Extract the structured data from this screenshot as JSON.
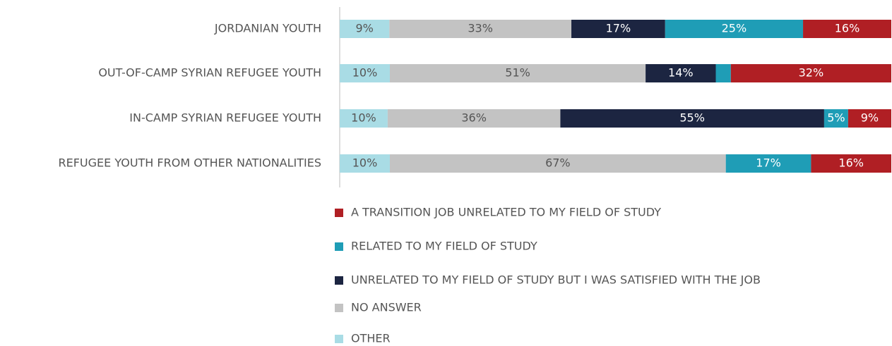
{
  "chart_data": {
    "type": "bar",
    "orientation": "horizontal",
    "stacked": true,
    "categories": [
      "JORDANIAN YOUTH",
      "OUT-OF-CAMP SYRIAN REFUGEE YOUTH",
      "IN-CAMP SYRIAN REFUGEE YOUTH",
      "REFUGEE YOUTH FROM OTHER NATIONALITIES"
    ],
    "series": [
      {
        "name": "OTHER",
        "color": "#a9dce5",
        "values": [
          9,
          10,
          10,
          10
        ],
        "value_labels": [
          "9%",
          "10%",
          "10%",
          "10%"
        ]
      },
      {
        "name": "NO ANSWER",
        "color": "#c3c3c3",
        "values": [
          33,
          51,
          36,
          67
        ],
        "value_labels": [
          "33%",
          "51%",
          "36%",
          "67%"
        ]
      },
      {
        "name": "UNRELATED TO MY FIELD OF STUDY BUT I WAS SATISFIED WITH THE JOB",
        "color": "#1c2541",
        "values": [
          17,
          14,
          55,
          null
        ],
        "value_labels": [
          "17%",
          "14%",
          "55%",
          null
        ]
      },
      {
        "name": "RELATED TO MY FIELD OF STUDY",
        "color": "#1f9db6",
        "values": [
          25,
          3,
          5,
          17
        ],
        "value_labels": [
          "25%",
          null,
          "5%",
          "17%"
        ]
      },
      {
        "name": "A TRANSITION JOB UNRELATED TO MY FIELD OF STUDY",
        "color": "#b01f24",
        "values": [
          16,
          32,
          9,
          16
        ],
        "value_labels": [
          "16%",
          "32%",
          "9%",
          "16%"
        ]
      }
    ],
    "legend": "bottom"
  }
}
